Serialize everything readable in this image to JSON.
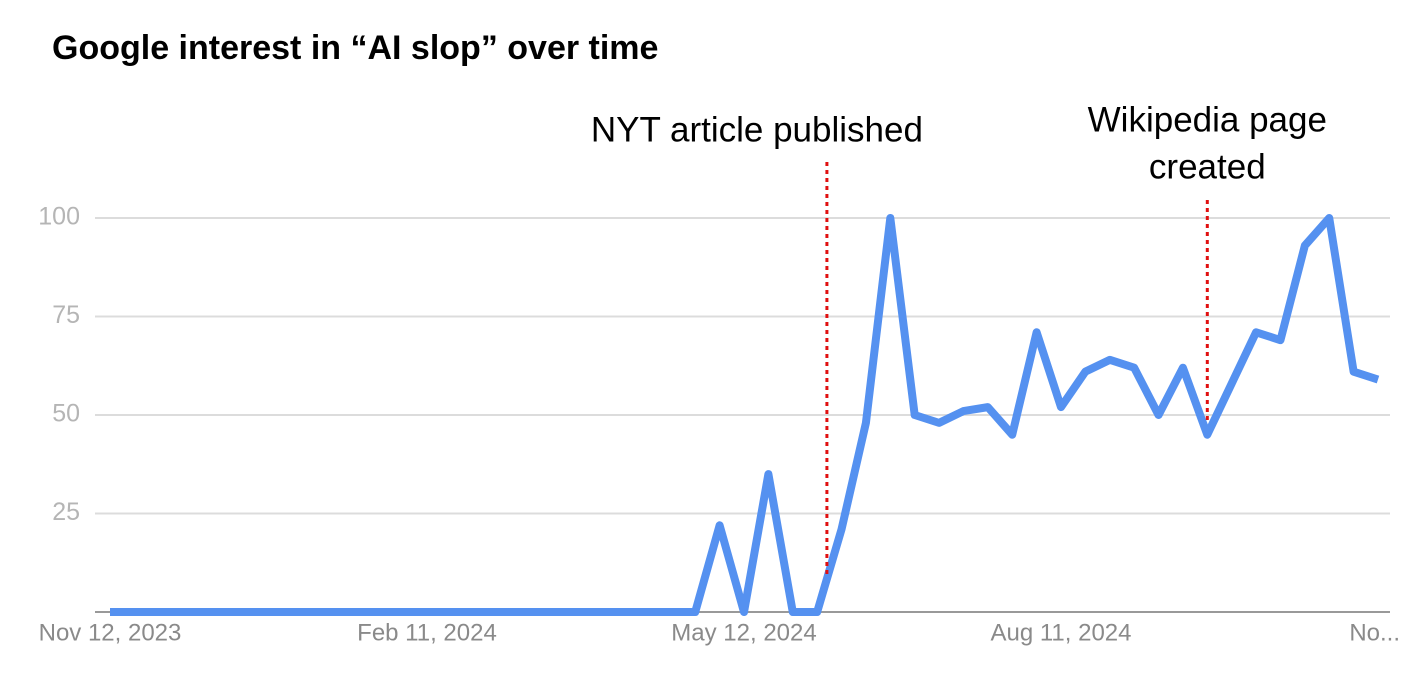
{
  "chart_data": {
    "type": "line",
    "title": "Google interest in “AI slop” over time",
    "categories": [
      "Nov 12, 2023",
      null,
      null,
      null,
      null,
      null,
      null,
      null,
      null,
      null,
      null,
      null,
      null,
      "Feb 11, 2024",
      null,
      null,
      null,
      null,
      null,
      null,
      null,
      null,
      null,
      null,
      null,
      null,
      "May 12, 2024",
      null,
      null,
      null,
      null,
      null,
      null,
      null,
      null,
      null,
      null,
      null,
      null,
      "Aug 11, 2024",
      null,
      null,
      null,
      null,
      null,
      null,
      null,
      null,
      null,
      null,
      null,
      null,
      "No..."
    ],
    "series": [
      {
        "name": "AI slop",
        "color": "#5591f0",
        "values": [
          0,
          0,
          0,
          0,
          0,
          0,
          0,
          0,
          0,
          0,
          0,
          0,
          0,
          0,
          0,
          0,
          0,
          0,
          0,
          0,
          0,
          0,
          0,
          0,
          0,
          22,
          0,
          35,
          0,
          0,
          21,
          48,
          100,
          50,
          48,
          51,
          52,
          45,
          71,
          52,
          61,
          64,
          62,
          50,
          62,
          45,
          58,
          71,
          69,
          93,
          100,
          61,
          59
        ]
      }
    ],
    "ylim": [
      0,
      100
    ],
    "yticks": [
      25,
      50,
      75,
      100
    ],
    "grid": true,
    "annotations": [
      {
        "lines": [
          "NYT article published"
        ],
        "at": 29.4
      },
      {
        "lines": [
          "Wikipedia page",
          "created"
        ],
        "at": 45
      }
    ]
  }
}
